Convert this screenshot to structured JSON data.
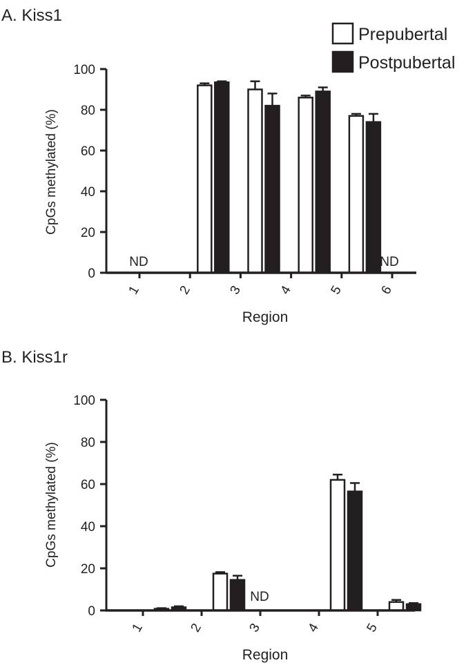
{
  "legend": [
    {
      "name": "Prepubertal",
      "fill": "#ffffff"
    },
    {
      "name": "Postpubertal",
      "fill": "#231f20"
    }
  ],
  "colors": {
    "ink": "#231f20",
    "background": "#ffffff"
  },
  "chart_data": [
    {
      "type": "bar",
      "title": "A. Kiss1",
      "xlabel": "Region",
      "ylabel": "CpGs methylated (%)",
      "ylim": [
        0,
        100
      ],
      "yticks": [
        "0",
        "20",
        "40",
        "60",
        "80",
        "100"
      ],
      "categories": [
        "1",
        "2",
        "3",
        "4",
        "5",
        "6"
      ],
      "series": [
        {
          "name": "Prepubertal",
          "values": [
            null,
            92,
            90,
            86,
            77,
            null
          ],
          "errors": [
            null,
            1,
            4,
            1,
            1,
            null
          ]
        },
        {
          "name": "Postpubertal",
          "values": [
            null,
            93.5,
            82,
            89,
            74,
            null
          ],
          "errors": [
            null,
            0.5,
            6,
            2,
            4,
            null
          ]
        }
      ],
      "annotations": [
        {
          "category": "1",
          "text": "ND"
        },
        {
          "category": "6",
          "text": "ND"
        }
      ]
    },
    {
      "type": "bar",
      "title": "B. Kiss1r",
      "xlabel": "Region",
      "ylabel": "CpGs methylated (%)",
      "ylim": [
        0,
        100
      ],
      "yticks": [
        "0",
        "20",
        "40",
        "60",
        "80",
        "100"
      ],
      "categories": [
        "1",
        "2",
        "3",
        "4",
        "5"
      ],
      "series": [
        {
          "name": "Prepubertal",
          "values": [
            0.8,
            17.5,
            null,
            62,
            4
          ],
          "errors": [
            0.3,
            0.7,
            null,
            2.5,
            1
          ]
        },
        {
          "name": "Postpubertal",
          "values": [
            1.5,
            14.5,
            null,
            56.5,
            3
          ],
          "errors": [
            0.5,
            2,
            null,
            4,
            0.5
          ]
        }
      ],
      "annotations": [
        {
          "category": "3",
          "text": "ND"
        }
      ]
    }
  ]
}
